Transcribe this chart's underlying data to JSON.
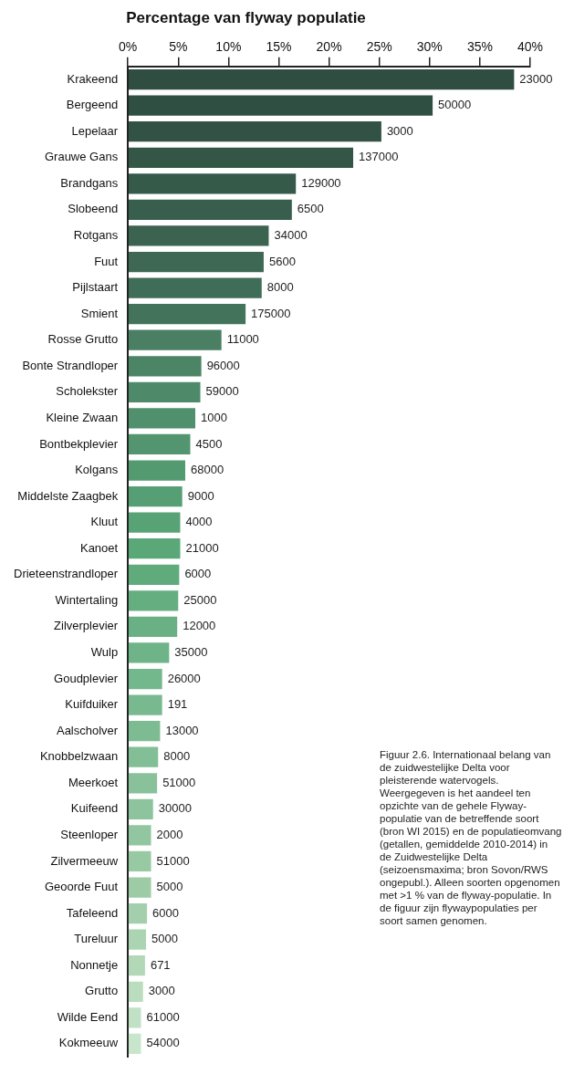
{
  "chart_data": {
    "type": "bar",
    "orientation": "horizontal",
    "title": "Percentage van flyway populatie",
    "categories": [
      "Krakeend",
      "Bergeend",
      "Lepelaar",
      "Grauwe Gans",
      "Brandgans",
      "Slobeend",
      "Rotgans",
      "Fuut",
      "Pijlstaart",
      "Smient",
      "Rosse Grutto",
      "Bonte Strandloper",
      "Scholekster",
      "Kleine Zwaan",
      "Bontbekplevier",
      "Kolgans",
      "Middelste Zaagbek",
      "Kluut",
      "Kanoet",
      "Drieteenstrandloper",
      "Wintertaling",
      "Zilverplevier",
      "Wulp",
      "Goudplevier",
      "Kuifduiker",
      "Aalscholver",
      "Knobbelzwaan",
      "Meerkoet",
      "Kuifeend",
      "Steenloper",
      "Zilvermeeuw",
      "Geoorde Fuut",
      "Tafeleend",
      "Tureluur",
      "Nonnetje",
      "Grutto",
      "Wilde Eend",
      "Kokmeeuw"
    ],
    "values": [
      38.4,
      30.3,
      25.2,
      22.4,
      16.7,
      16.3,
      14.0,
      13.5,
      13.3,
      11.7,
      9.3,
      7.3,
      7.2,
      6.7,
      6.2,
      5.7,
      5.4,
      5.2,
      5.2,
      5.1,
      5.0,
      4.9,
      4.1,
      3.4,
      3.4,
      3.2,
      3.0,
      2.9,
      2.5,
      2.3,
      2.3,
      2.3,
      1.9,
      1.8,
      1.7,
      1.5,
      1.3,
      1.3
    ],
    "colors": [
      "#2f4d41",
      "#304f43",
      "#325245",
      "#345647",
      "#365a4a",
      "#385e4d",
      "#3b6350",
      "#3e6854",
      "#406d57",
      "#43735b",
      "#4a7f63",
      "#4c8466",
      "#4e8a69",
      "#50906c",
      "#52956f",
      "#549a71",
      "#569e74",
      "#58a376",
      "#5aa878",
      "#5fab7c",
      "#64ae80",
      "#69b184",
      "#6eb488",
      "#73b78c",
      "#78b98f",
      "#7dbb92",
      "#82be96",
      "#88c19a",
      "#8dc49d",
      "#92c6a0",
      "#97c9a3",
      "#9dcba6",
      "#a4cfac",
      "#abd4b2",
      "#b2d8b8",
      "#b9ddbe",
      "#c0e1c5",
      "#c8e6cc"
    ],
    "xlim": [
      0,
      40
    ],
    "xticks": [
      {
        "value": 0,
        "label": "0%"
      },
      {
        "value": 5,
        "label": "5%"
      },
      {
        "value": 10,
        "label": "10%"
      },
      {
        "value": 15,
        "label": "15%"
      },
      {
        "value": 20,
        "label": "20%"
      },
      {
        "value": 25,
        "label": "25%"
      },
      {
        "value": 30,
        "label": "30%"
      },
      {
        "value": 35,
        "label": "35%"
      },
      {
        "value": 40,
        "label": "40%"
      }
    ],
    "legend": false,
    "annotations": [
      "Figuur 2.6. Internationaal belang van de zuidwestelijke Delta voor pleisterende watervogels. Weergegeven is het aandeel ten opzichte van de gehele Flyway-populatie van de betreffende soort (bron WI 2015) en de populatieomvang (getallen, gemiddelde 2010-2014) in de Zuidwestelijke Delta (seizoensmaxima; bron Sovon/RWS ongepubl.). Alleen soorten opgenomen met >1 % van de flyway-populatie. In de figuur zijn flywaypopulaties per soort samen genomen.",
      {
        "text": "23000",
        "x": 38.4,
        "y": "Krakeend"
      },
      {
        "text": "50000",
        "x": 30.3,
        "y": "Bergeend"
      },
      {
        "text": "3000",
        "x": 25.2,
        "y": "Lepelaar"
      },
      {
        "text": "137000",
        "x": 22.4,
        "y": "Grauwe Gans"
      },
      {
        "text": "129000",
        "x": 16.7,
        "y": "Brandgans"
      },
      {
        "text": "6500",
        "x": 16.3,
        "y": "Slobeend"
      },
      {
        "text": "34000",
        "x": 14.0,
        "y": "Rotgans"
      },
      {
        "text": "5600",
        "x": 13.5,
        "y": "Fuut"
      },
      {
        "text": "8000",
        "x": 13.3,
        "y": "Pijlstaart"
      },
      {
        "text": "175000",
        "x": 11.7,
        "y": "Smient"
      },
      {
        "text": "11000",
        "x": 9.3,
        "y": "Rosse Grutto"
      },
      {
        "text": "96000",
        "x": 7.3,
        "y": "Bonte Strandloper"
      },
      {
        "text": "59000",
        "x": 7.2,
        "y": "Scholekster"
      },
      {
        "text": "1000",
        "x": 6.7,
        "y": "Kleine Zwaan"
      },
      {
        "text": "4500",
        "x": 6.2,
        "y": "Bontbekplevier"
      },
      {
        "text": "68000",
        "x": 5.7,
        "y": "Kolgans"
      },
      {
        "text": "9000",
        "x": 5.4,
        "y": "Middelste Zaagbek"
      },
      {
        "text": "4000",
        "x": 5.2,
        "y": "Kluut"
      },
      {
        "text": "21000",
        "x": 5.2,
        "y": "Kanoet"
      },
      {
        "text": "6000",
        "x": 5.1,
        "y": "Drieteenstrandloper"
      },
      {
        "text": "25000",
        "x": 5.0,
        "y": "Wintertaling"
      },
      {
        "text": "12000",
        "x": 4.9,
        "y": "Zilverplevier"
      },
      {
        "text": "35000",
        "x": 4.1,
        "y": "Wulp"
      },
      {
        "text": "26000",
        "x": 3.4,
        "y": "Goudplevier"
      },
      {
        "text": "191",
        "x": 3.4,
        "y": "Kuifduiker"
      },
      {
        "text": "13000",
        "x": 3.2,
        "y": "Aalscholver"
      },
      {
        "text": "8000",
        "x": 3.0,
        "y": "Knobbelzwaan"
      },
      {
        "text": "51000",
        "x": 2.9,
        "y": "Meerkoet"
      },
      {
        "text": "30000",
        "x": 2.5,
        "y": "Kuifeend"
      },
      {
        "text": "2000",
        "x": 2.3,
        "y": "Steenloper"
      },
      {
        "text": "51000",
        "x": 2.3,
        "y": "Zilvermeeuw"
      },
      {
        "text": "5000",
        "x": 2.3,
        "y": "Geoorde Fuut"
      },
      {
        "text": "6000",
        "x": 1.9,
        "y": "Tafeleend"
      },
      {
        "text": "5000",
        "x": 1.8,
        "y": "Tureluur"
      },
      {
        "text": "671",
        "x": 1.7,
        "y": "Nonnetje"
      },
      {
        "text": "3000",
        "x": 1.5,
        "y": "Grutto"
      },
      {
        "text": "61000",
        "x": 1.3,
        "y": "Wilde Eend"
      },
      {
        "text": "54000",
        "x": 1.3,
        "y": "Kokmeeuw"
      }
    ]
  }
}
